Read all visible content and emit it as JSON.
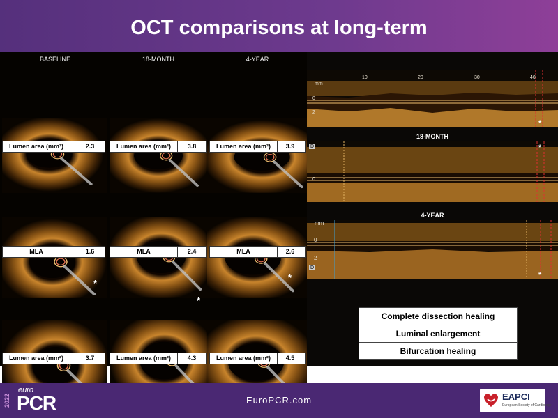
{
  "title": "OCT comparisons at long-term",
  "columns": [
    "BASELINE",
    "18-MONTH",
    "4-YEAR"
  ],
  "rows": [
    {
      "label": "Lumen area (mm²)",
      "values": [
        "2.3",
        "3.8",
        "3.9"
      ]
    },
    {
      "label": "MLA",
      "values": [
        "1.6",
        "2.4",
        "2.6"
      ]
    },
    {
      "label": "Lumen area (mm²)",
      "values": [
        "3.7",
        "4.3",
        "4.5"
      ]
    }
  ],
  "asterisk": "*",
  "longitudinal": {
    "axis_unit": "mm",
    "ticks": [
      "10",
      "20",
      "30",
      "40"
    ],
    "depth_labels": [
      "0",
      "2"
    ],
    "marker": "D",
    "labels": [
      "18-MONTH",
      "4-YEAR"
    ]
  },
  "findings": [
    "Complete dissection healing",
    "Luminal enlargement",
    "Bifurcation healing"
  ],
  "footer": {
    "url": "EuroPCR.com",
    "logo_year": "2022",
    "logo_euro": "euro",
    "logo_pcr": "PCR",
    "eapci_name": "EAPCI",
    "eapci_sub": "European Society of Cardiology"
  },
  "colors": {
    "header": "#5e3386",
    "footer": "#4a2873",
    "tissue": "#d9a040"
  }
}
